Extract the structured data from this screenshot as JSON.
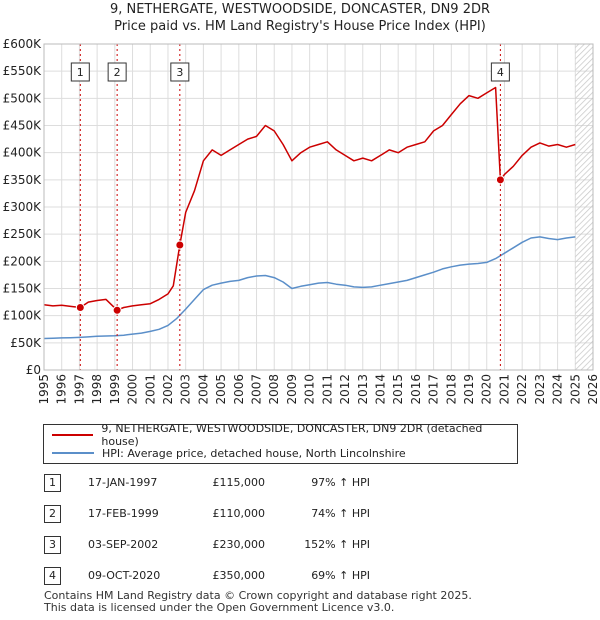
{
  "title_line1": "9, NETHERGATE, WESTWOODSIDE, DONCASTER, DN9 2DR",
  "title_line2": "Price paid vs. HM Land Registry's House Price Index (HPI)",
  "chart_data": {
    "type": "line",
    "title": "9, NETHERGATE, WESTWOODSIDE, DONCASTER, DN9 2DR — Price paid vs. HM Land Registry's House Price Index (HPI)",
    "xlabel": "",
    "ylabel": "",
    "xlim": [
      1995,
      2026
    ],
    "ylim": [
      0,
      600000
    ],
    "y_ticks": [
      "£0",
      "£50K",
      "£100K",
      "£150K",
      "£200K",
      "£250K",
      "£300K",
      "£350K",
      "£400K",
      "£450K",
      "£500K",
      "£550K",
      "£600K"
    ],
    "x_ticks": [
      "1995",
      "1996",
      "1997",
      "1998",
      "1999",
      "2000",
      "2001",
      "2002",
      "2003",
      "2004",
      "2005",
      "2006",
      "2007",
      "2008",
      "2009",
      "2010",
      "2011",
      "2012",
      "2013",
      "2014",
      "2015",
      "2016",
      "2017",
      "2018",
      "2019",
      "2020",
      "2021",
      "2022",
      "2023",
      "2024",
      "2025",
      "2026"
    ],
    "grid": true,
    "hatched_future_from": 2025.0,
    "series": [
      {
        "name": "9, NETHERGATE, WESTWOODSIDE, DONCASTER, DN9 2DR (detached house)",
        "color": "#cc0000",
        "x": [
          1995.0,
          1995.5,
          1996.0,
          1996.5,
          1997.05,
          1997.5,
          1998.0,
          1998.5,
          1999.13,
          1999.5,
          2000.0,
          2000.5,
          2001.0,
          2001.5,
          2002.0,
          2002.3,
          2002.67,
          2003.0,
          2003.5,
          2004.0,
          2004.5,
          2005.0,
          2005.5,
          2006.0,
          2006.5,
          2007.0,
          2007.5,
          2008.0,
          2008.5,
          2009.0,
          2009.5,
          2010.0,
          2010.5,
          2011.0,
          2011.5,
          2012.0,
          2012.5,
          2013.0,
          2013.5,
          2014.0,
          2014.5,
          2015.0,
          2015.5,
          2016.0,
          2016.5,
          2017.0,
          2017.5,
          2018.0,
          2018.5,
          2019.0,
          2019.5,
          2020.0,
          2020.5,
          2020.77,
          2021.0,
          2021.5,
          2022.0,
          2022.5,
          2023.0,
          2023.5,
          2024.0,
          2024.5,
          2025.0
        ],
        "values": [
          120000,
          118000,
          119000,
          117000,
          115000,
          125000,
          128000,
          130000,
          110000,
          115000,
          118000,
          120000,
          122000,
          130000,
          140000,
          155000,
          230000,
          290000,
          330000,
          385000,
          405000,
          395000,
          405000,
          415000,
          425000,
          430000,
          450000,
          440000,
          415000,
          385000,
          400000,
          410000,
          415000,
          420000,
          405000,
          395000,
          385000,
          390000,
          385000,
          395000,
          405000,
          400000,
          410000,
          415000,
          420000,
          440000,
          450000,
          470000,
          490000,
          505000,
          500000,
          510000,
          520000,
          350000,
          360000,
          375000,
          395000,
          410000,
          418000,
          412000,
          415000,
          410000,
          415000
        ]
      },
      {
        "name": "HPI: Average price, detached house, North Lincolnshire",
        "color": "#5b8fc9",
        "x": [
          1995.0,
          1995.5,
          1996.0,
          1996.5,
          1997.0,
          1997.5,
          1998.0,
          1998.5,
          1999.0,
          1999.5,
          2000.0,
          2000.5,
          2001.0,
          2001.5,
          2002.0,
          2002.5,
          2003.0,
          2003.5,
          2004.0,
          2004.5,
          2005.0,
          2005.5,
          2006.0,
          2006.5,
          2007.0,
          2007.5,
          2008.0,
          2008.5,
          2009.0,
          2009.5,
          2010.0,
          2010.5,
          2011.0,
          2011.5,
          2012.0,
          2012.5,
          2013.0,
          2013.5,
          2014.0,
          2014.5,
          2015.0,
          2015.5,
          2016.0,
          2016.5,
          2017.0,
          2017.5,
          2018.0,
          2018.5,
          2019.0,
          2019.5,
          2020.0,
          2020.5,
          2021.0,
          2021.5,
          2022.0,
          2022.5,
          2023.0,
          2023.5,
          2024.0,
          2024.5,
          2025.0
        ],
        "values": [
          58000,
          58500,
          59000,
          59500,
          60000,
          61000,
          62000,
          62500,
          63000,
          64000,
          66000,
          68000,
          71000,
          75000,
          82000,
          95000,
          112000,
          130000,
          148000,
          156000,
          160000,
          163000,
          165000,
          170000,
          173000,
          174000,
          170000,
          162000,
          150000,
          154000,
          157000,
          160000,
          161000,
          158000,
          156000,
          153000,
          152000,
          153000,
          156000,
          159000,
          162000,
          165000,
          170000,
          175000,
          180000,
          186000,
          190000,
          193000,
          195000,
          196000,
          198000,
          205000,
          215000,
          225000,
          235000,
          243000,
          245000,
          242000,
          240000,
          243000,
          245000
        ]
      }
    ],
    "sale_markers": [
      {
        "label": "1",
        "x": 1997.05,
        "value": 115000
      },
      {
        "label": "2",
        "x": 1999.13,
        "value": 110000
      },
      {
        "label": "3",
        "x": 2002.67,
        "value": 230000
      },
      {
        "label": "4",
        "x": 2020.77,
        "value": 350000
      }
    ]
  },
  "legend": {
    "property_label": "9, NETHERGATE, WESTWOODSIDE, DONCASTER, DN9 2DR (detached house)",
    "hpi_label": "HPI: Average price, detached house, North Lincolnshire",
    "property_color": "#cc0000",
    "hpi_color": "#5b8fc9"
  },
  "sales": [
    {
      "num": "1",
      "date": "17-JAN-1997",
      "price": "£115,000",
      "hpi": "97% ↑ HPI"
    },
    {
      "num": "2",
      "date": "17-FEB-1999",
      "price": "£110,000",
      "hpi": "74% ↑ HPI"
    },
    {
      "num": "3",
      "date": "03-SEP-2002",
      "price": "£230,000",
      "hpi": "152% ↑ HPI"
    },
    {
      "num": "4",
      "date": "09-OCT-2020",
      "price": "£350,000",
      "hpi": "69% ↑ HPI"
    }
  ],
  "footer": {
    "line1": "Contains HM Land Registry data © Crown copyright and database right 2025.",
    "line2": "This data is licensed under the Open Government Licence v3.0."
  }
}
